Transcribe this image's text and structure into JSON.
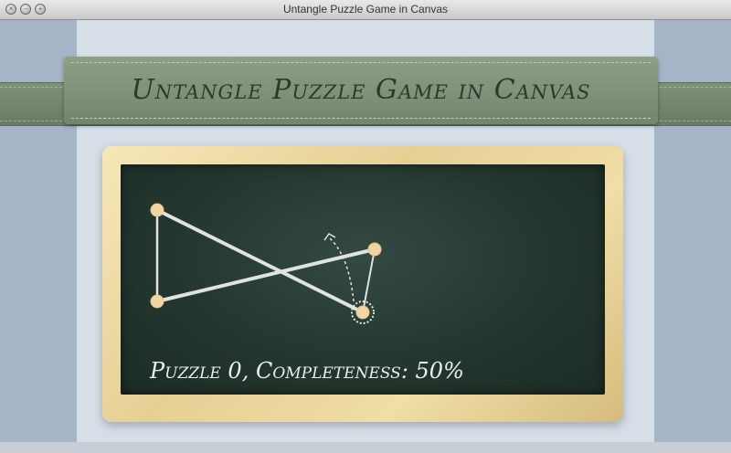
{
  "window": {
    "title": "Untangle Puzzle Game in Canvas"
  },
  "header": {
    "banner_title": "Untangle Puzzle Game in Canvas"
  },
  "game": {
    "status_text": "Puzzle 0, Completeness: 50%",
    "completeness_percent": 50,
    "level": 0,
    "colors": {
      "board": "#2a3f37",
      "line": "#dfe3e2",
      "circle": "#f1d6a2",
      "frame": "#f0dea6"
    }
  }
}
